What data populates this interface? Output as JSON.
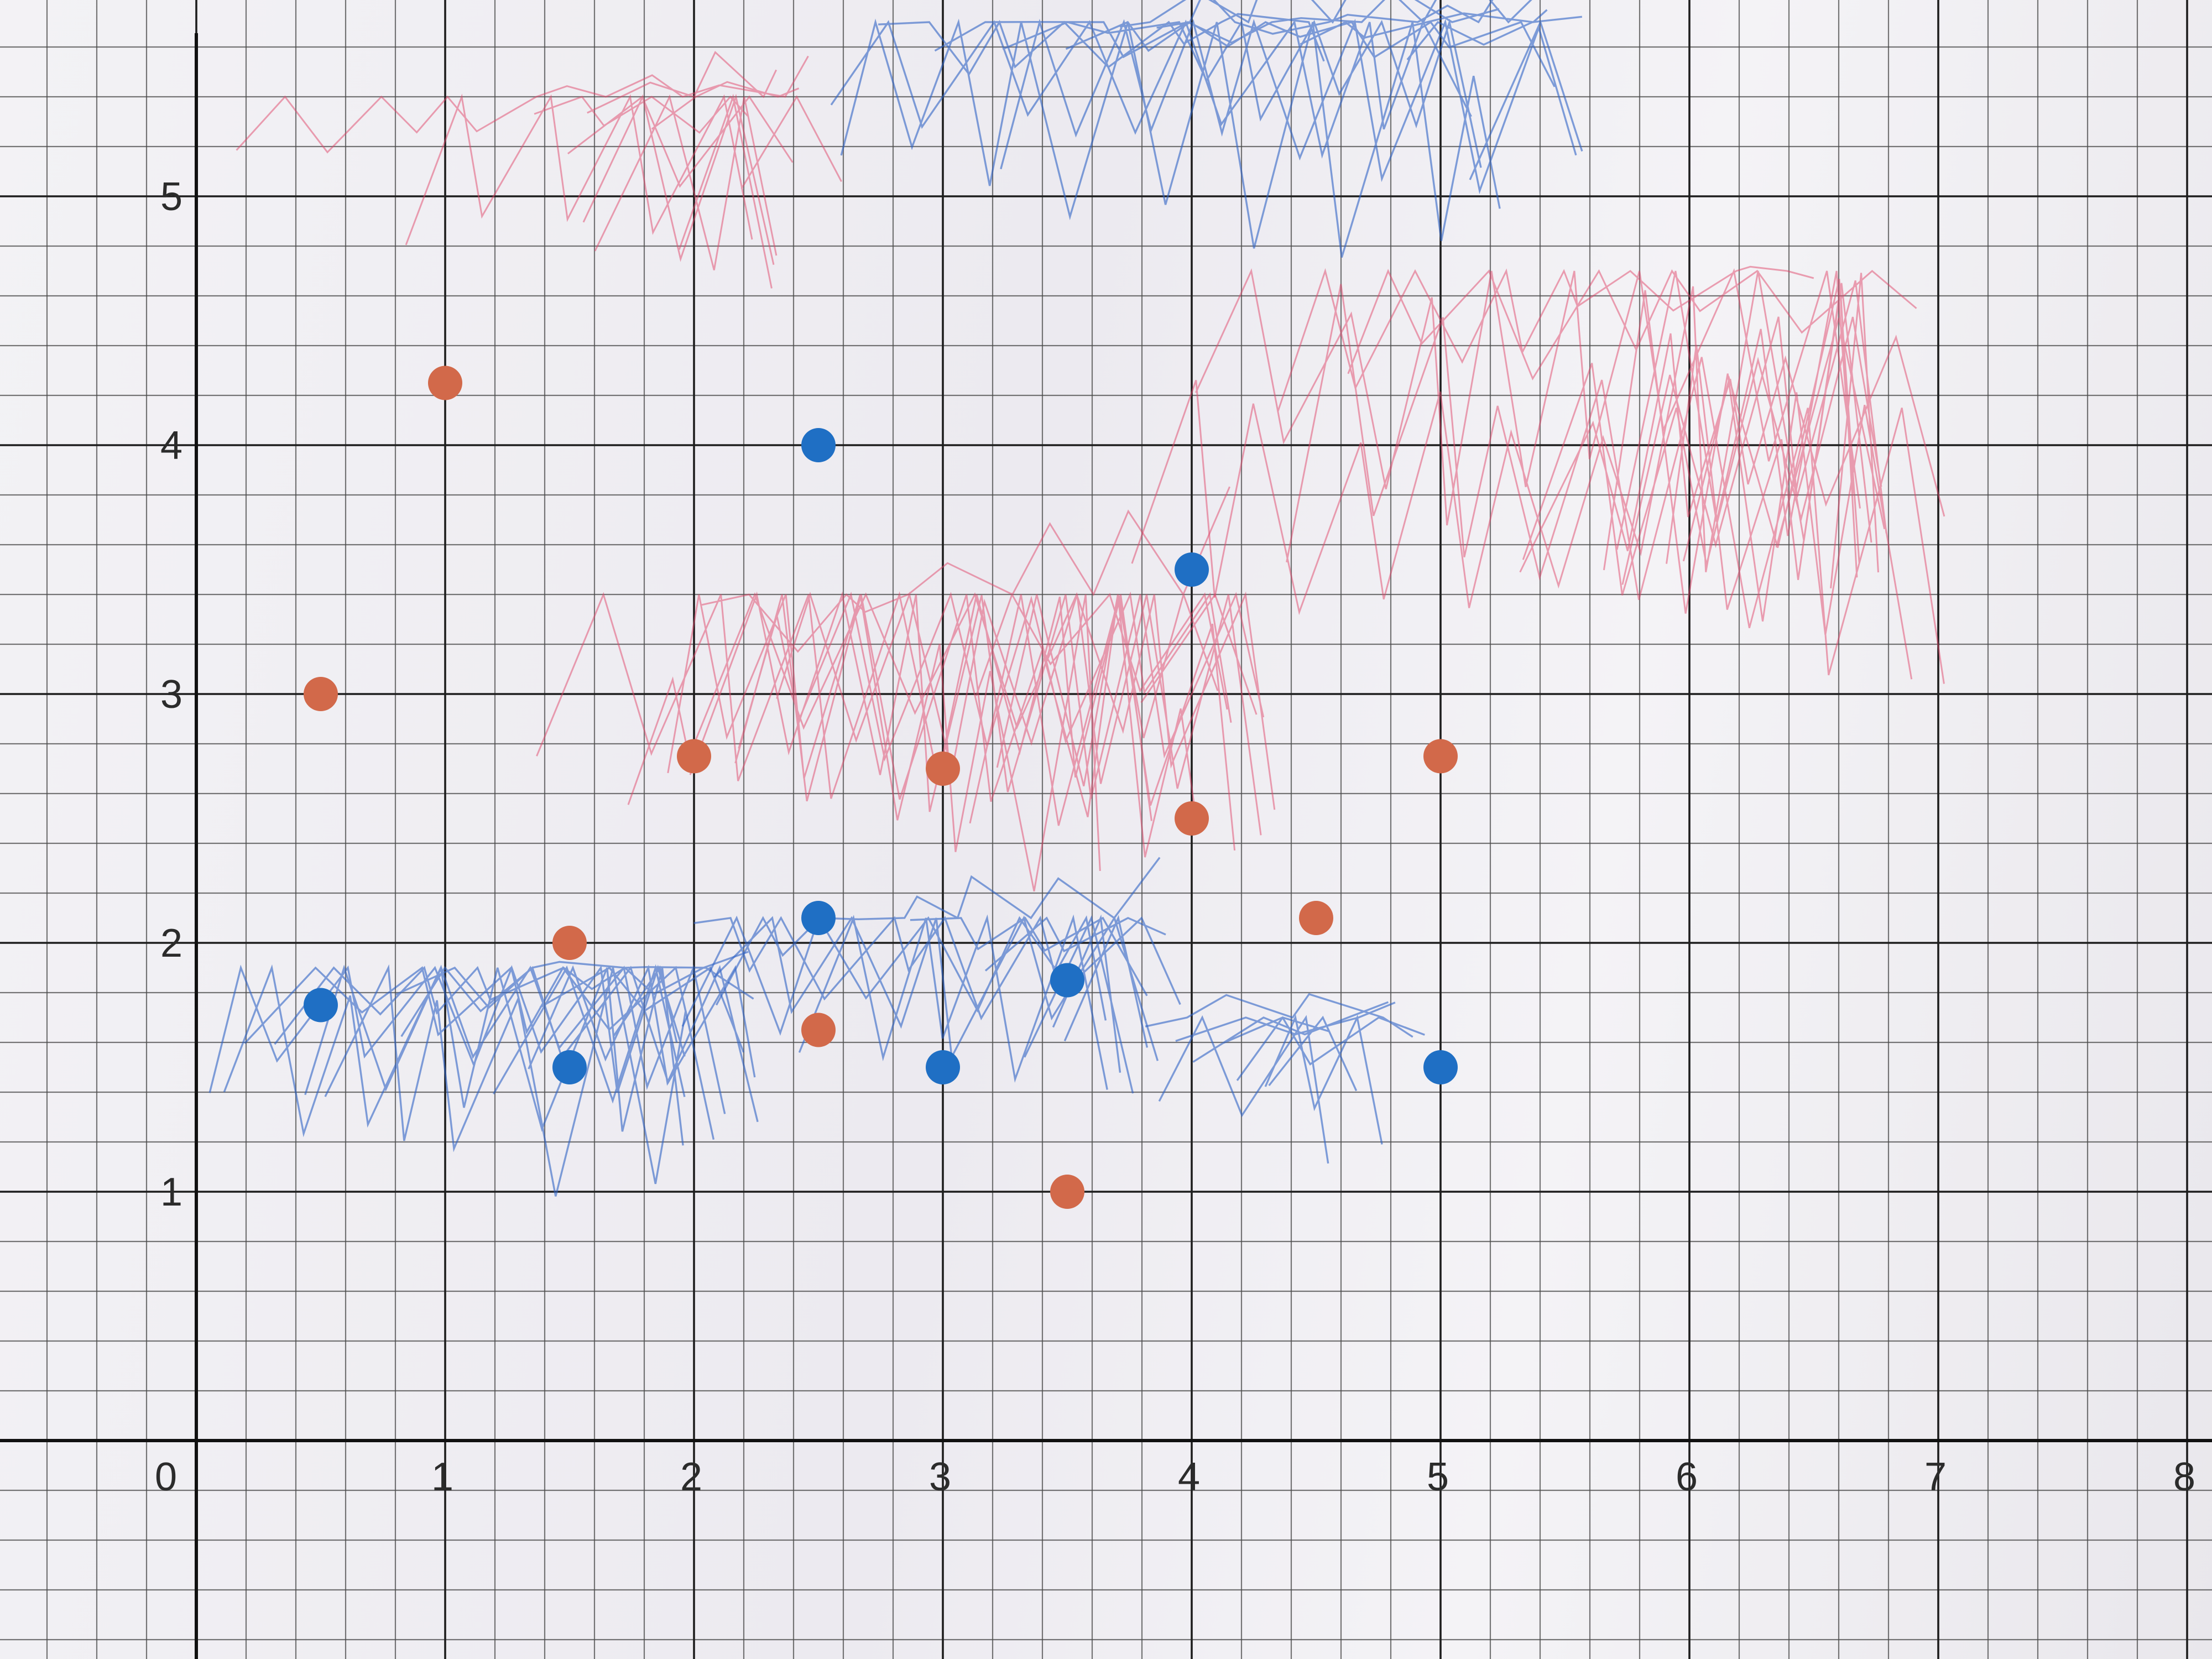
{
  "chart_data": {
    "type": "scatter",
    "title": "",
    "xlabel": "",
    "ylabel": "",
    "xlim": [
      0,
      8
    ],
    "ylim": [
      0,
      5.5
    ],
    "x_ticks": [
      "0",
      "1",
      "2",
      "3",
      "4",
      "5",
      "6",
      "7",
      "8"
    ],
    "y_ticks": [
      "1",
      "2",
      "3",
      "4",
      "5"
    ],
    "grid": true,
    "minor_grid_step": 0.2,
    "series": [
      {
        "color": "#d2694a",
        "shading_color": "#e0456a",
        "points": [
          {
            "x": 1.0,
            "y": 4.25
          },
          {
            "x": 0.5,
            "y": 3.0
          },
          {
            "x": 1.5,
            "y": 2.0
          },
          {
            "x": 2.0,
            "y": 2.75
          },
          {
            "x": 2.5,
            "y": 1.65
          },
          {
            "x": 3.0,
            "y": 2.7
          },
          {
            "x": 3.5,
            "y": 1.0
          },
          {
            "x": 4.0,
            "y": 2.5
          },
          {
            "x": 4.5,
            "y": 2.1
          },
          {
            "x": 5.0,
            "y": 2.75
          }
        ]
      },
      {
        "color": "#1f6fc4",
        "shading_color": "#2e63c4",
        "points": [
          {
            "x": 0.5,
            "y": 1.75
          },
          {
            "x": 1.5,
            "y": 1.5
          },
          {
            "x": 2.5,
            "y": 4.0
          },
          {
            "x": 2.5,
            "y": 2.1
          },
          {
            "x": 3.0,
            "y": 1.5
          },
          {
            "x": 3.5,
            "y": 1.85
          },
          {
            "x": 4.0,
            "y": 3.5
          },
          {
            "x": 5.0,
            "y": 1.5
          }
        ]
      }
    ]
  }
}
